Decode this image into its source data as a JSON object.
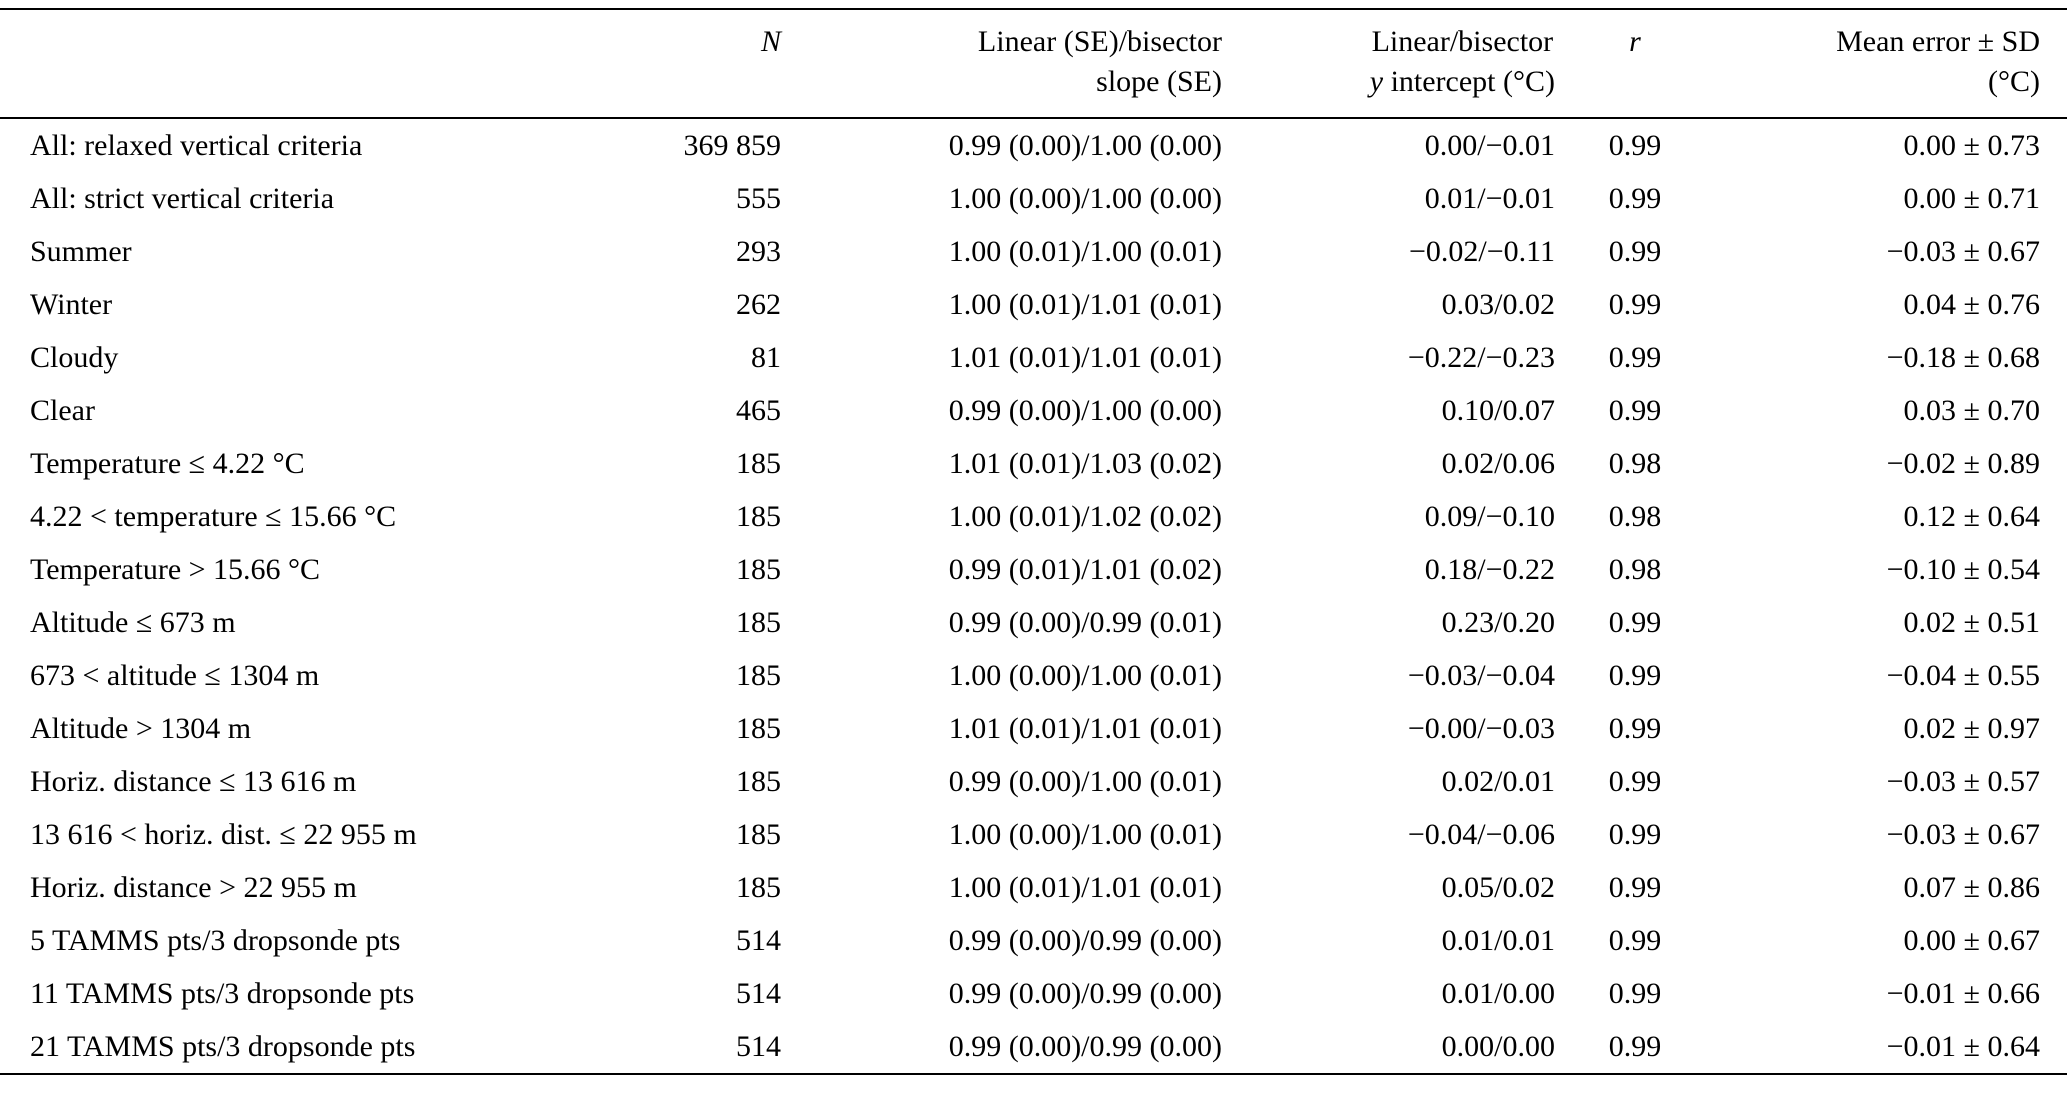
{
  "table": {
    "columns": {
      "label": "",
      "n": "N",
      "slope": "Linear (SE)/bisector\nslope (SE)",
      "intercept_line1": "Linear/bisector",
      "intercept_y": "y",
      "intercept_rest": " intercept (°C)",
      "r": "r",
      "mean_error": "Mean error ± SD\n(°C)"
    },
    "rows": [
      {
        "label": "All: relaxed vertical criteria",
        "n": "369 859",
        "slope": "0.99 (0.00)/1.00 (0.00)",
        "intercept": "0.00/−0.01",
        "r": "0.99",
        "mean_error": "0.00 ± 0.73"
      },
      {
        "label": "All: strict vertical criteria",
        "n": "555",
        "slope": "1.00 (0.00)/1.00 (0.00)",
        "intercept": "0.01/−0.01",
        "r": "0.99",
        "mean_error": "0.00 ± 0.71"
      },
      {
        "label": "Summer",
        "n": "293",
        "slope": "1.00 (0.01)/1.00 (0.01)",
        "intercept": "−0.02/−0.11",
        "r": "0.99",
        "mean_error": "−0.03 ± 0.67"
      },
      {
        "label": "Winter",
        "n": "262",
        "slope": "1.00 (0.01)/1.01 (0.01)",
        "intercept": "0.03/0.02",
        "r": "0.99",
        "mean_error": "0.04 ± 0.76"
      },
      {
        "label": "Cloudy",
        "n": "81",
        "slope": "1.01 (0.01)/1.01 (0.01)",
        "intercept": "−0.22/−0.23",
        "r": "0.99",
        "mean_error": "−0.18 ± 0.68"
      },
      {
        "label": "Clear",
        "n": "465",
        "slope": "0.99 (0.00)/1.00 (0.00)",
        "intercept": "0.10/0.07",
        "r": "0.99",
        "mean_error": "0.03 ± 0.70"
      },
      {
        "label": "Temperature ≤ 4.22 °C",
        "n": "185",
        "slope": "1.01 (0.01)/1.03 (0.02)",
        "intercept": "0.02/0.06",
        "r": "0.98",
        "mean_error": "−0.02 ± 0.89"
      },
      {
        "label": "4.22 < temperature ≤ 15.66 °C",
        "n": "185",
        "slope": "1.00 (0.01)/1.02 (0.02)",
        "intercept": "0.09/−0.10",
        "r": "0.98",
        "mean_error": "0.12 ± 0.64"
      },
      {
        "label": "Temperature > 15.66 °C",
        "n": "185",
        "slope": "0.99 (0.01)/1.01 (0.02)",
        "intercept": "0.18/−0.22",
        "r": "0.98",
        "mean_error": "−0.10 ± 0.54"
      },
      {
        "label": "Altitude ≤ 673 m",
        "n": "185",
        "slope": "0.99 (0.00)/0.99 (0.01)",
        "intercept": "0.23/0.20",
        "r": "0.99",
        "mean_error": "0.02 ± 0.51"
      },
      {
        "label": "673 < altitude ≤ 1304 m",
        "n": "185",
        "slope": "1.00 (0.00)/1.00 (0.01)",
        "intercept": "−0.03/−0.04",
        "r": "0.99",
        "mean_error": "−0.04 ± 0.55"
      },
      {
        "label": "Altitude > 1304 m",
        "n": "185",
        "slope": "1.01 (0.01)/1.01 (0.01)",
        "intercept": "−0.00/−0.03",
        "r": "0.99",
        "mean_error": "0.02 ± 0.97"
      },
      {
        "label": "Horiz. distance ≤ 13 616 m",
        "n": "185",
        "slope": "0.99 (0.00)/1.00 (0.01)",
        "intercept": "0.02/0.01",
        "r": "0.99",
        "mean_error": "−0.03 ± 0.57"
      },
      {
        "label": "13 616 < horiz. dist. ≤ 22 955 m",
        "n": "185",
        "slope": "1.00 (0.00)/1.00 (0.01)",
        "intercept": "−0.04/−0.06",
        "r": "0.99",
        "mean_error": "−0.03 ± 0.67"
      },
      {
        "label": "Horiz. distance > 22 955 m",
        "n": "185",
        "slope": "1.00 (0.01)/1.01 (0.01)",
        "intercept": "0.05/0.02",
        "r": "0.99",
        "mean_error": "0.07 ± 0.86"
      },
      {
        "label": "5 TAMMS pts/3 dropsonde pts",
        "n": "514",
        "slope": "0.99 (0.00)/0.99 (0.00)",
        "intercept": "0.01/0.01",
        "r": "0.99",
        "mean_error": "0.00 ± 0.67"
      },
      {
        "label": "11 TAMMS pts/3 dropsonde pts",
        "n": "514",
        "slope": "0.99 (0.00)/0.99 (0.00)",
        "intercept": "0.01/0.00",
        "r": "0.99",
        "mean_error": "−0.01 ± 0.66"
      },
      {
        "label": "21 TAMMS pts/3 dropsonde pts",
        "n": "514",
        "slope": "0.99 (0.00)/0.99 (0.00)",
        "intercept": "0.00/0.00",
        "r": "0.99",
        "mean_error": "−0.01 ± 0.64"
      }
    ]
  }
}
